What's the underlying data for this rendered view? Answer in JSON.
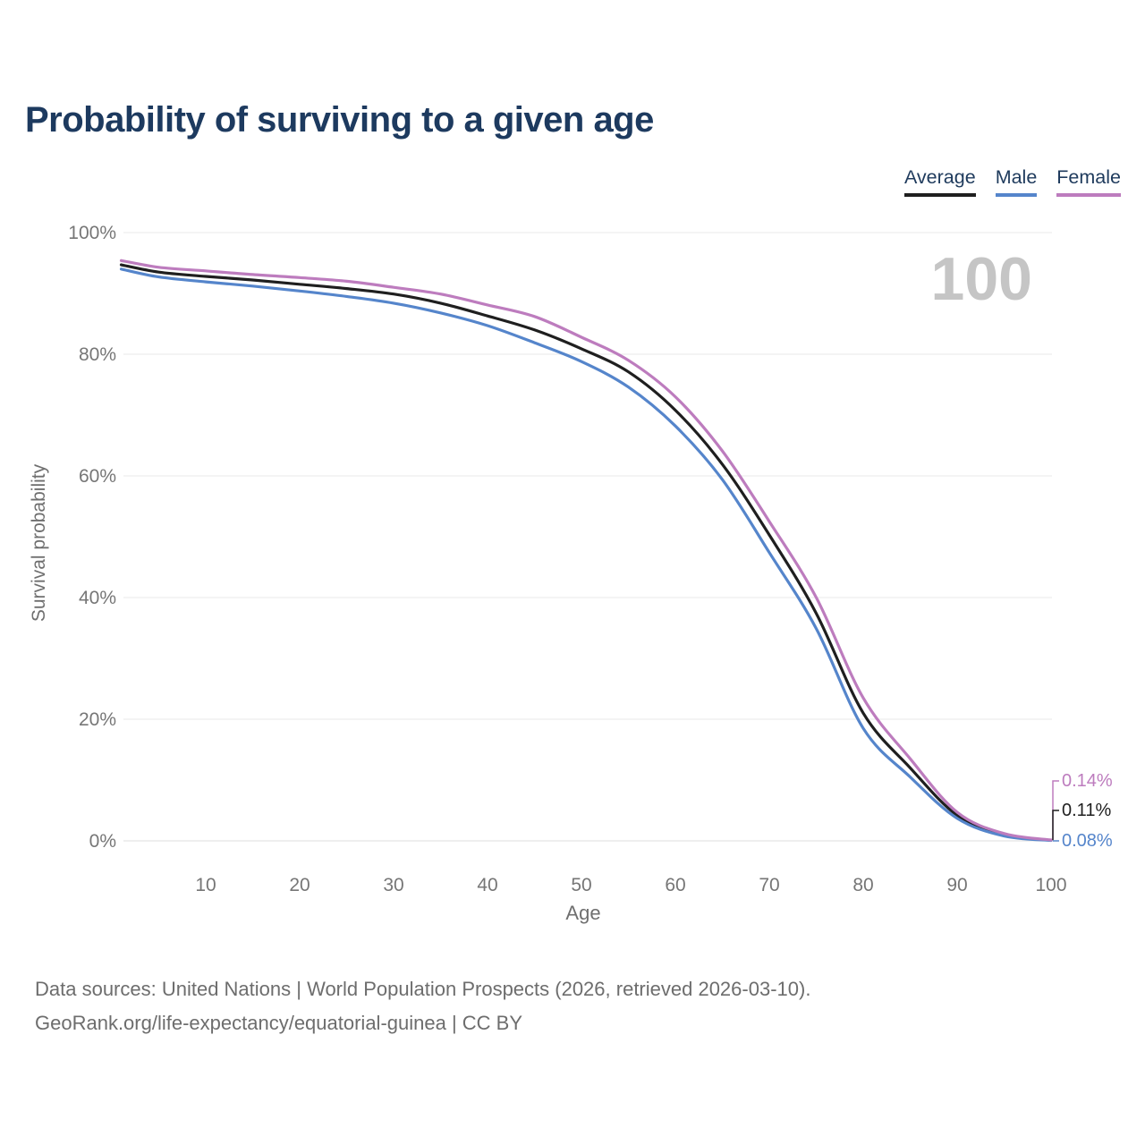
{
  "header": {
    "title": "Probability of surviving to a given age"
  },
  "legend": {
    "items": [
      {
        "label": "Average",
        "color": "#1f1f1f"
      },
      {
        "label": "Male",
        "color": "#5585cb"
      },
      {
        "label": "Female",
        "color": "#bd7cbe"
      }
    ]
  },
  "chart_data": {
    "type": "line",
    "title": "Probability of surviving to a given age",
    "xlabel": "Age",
    "ylabel": "Survival probability",
    "xlim": [
      1,
      100
    ],
    "ylim": [
      0,
      100
    ],
    "grid": "horizontal",
    "legend_position": "top-right",
    "frame_label": "100",
    "x_ticks": [
      10,
      20,
      30,
      40,
      50,
      60,
      70,
      80,
      90,
      100
    ],
    "y_ticks": [
      {
        "value": 0,
        "label": "0%"
      },
      {
        "value": 20,
        "label": "20%"
      },
      {
        "value": 40,
        "label": "40%"
      },
      {
        "value": 60,
        "label": "60%"
      },
      {
        "value": 80,
        "label": "80%"
      },
      {
        "value": 100,
        "label": "100%"
      }
    ],
    "x": [
      1,
      5,
      10,
      15,
      20,
      25,
      30,
      35,
      40,
      45,
      50,
      55,
      60,
      65,
      70,
      75,
      80,
      85,
      90,
      95,
      100
    ],
    "series": [
      {
        "name": "Average",
        "color": "#1f1f1f",
        "values": [
          94.7,
          93.5,
          92.8,
          92.2,
          91.5,
          90.8,
          89.9,
          88.4,
          86.3,
          84.0,
          80.9,
          77.1,
          70.8,
          61.9,
          50.3,
          37.4,
          21.0,
          12.0,
          4.2,
          1.0,
          0.11
        ]
      },
      {
        "name": "Male",
        "color": "#5585cb",
        "values": [
          94.0,
          92.7,
          91.9,
          91.2,
          90.4,
          89.5,
          88.4,
          86.8,
          84.7,
          81.9,
          78.8,
          74.6,
          68.2,
          59.4,
          47.4,
          34.9,
          18.5,
          10.5,
          3.7,
          0.8,
          0.08
        ]
      },
      {
        "name": "Female",
        "color": "#bd7cbe",
        "values": [
          95.4,
          94.3,
          93.7,
          93.1,
          92.6,
          92.0,
          91.0,
          89.9,
          88.1,
          86.2,
          82.8,
          79.0,
          73.0,
          64.1,
          52.5,
          40.0,
          23.5,
          13.5,
          4.7,
          1.2,
          0.14
        ]
      }
    ],
    "end_labels": [
      {
        "text": "0.14%",
        "series": "Female",
        "value": 0.14,
        "color": "#bd7cbe"
      },
      {
        "text": "0.11%",
        "series": "Average",
        "value": 0.11,
        "color": "#1f1f1f"
      },
      {
        "text": "0.08%",
        "series": "Male",
        "value": 0.08,
        "color": "#5585cb"
      }
    ]
  },
  "footer": {
    "line1": "Data sources: United Nations | World Population Prospects (2026, retrieved 2026-03-10).",
    "line2": "GeoRank.org/life-expectancy/equatorial-guinea | CC BY"
  }
}
